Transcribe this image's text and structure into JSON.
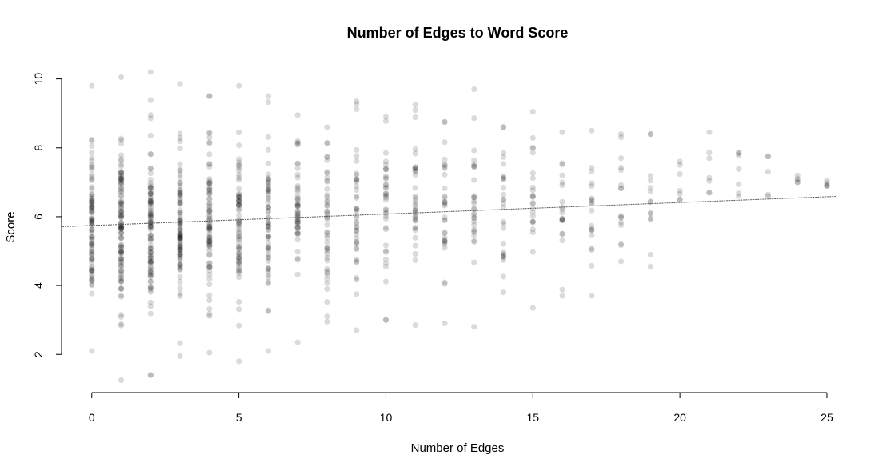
{
  "chart_data": {
    "type": "scatter",
    "title": "Number of Edges to Word Score",
    "xlabel": "Number of Edges",
    "ylabel": "Score",
    "xlim": [
      -1,
      25.3
    ],
    "ylim": [
      1.1,
      10.2
    ],
    "x_ticks": [
      0,
      5,
      10,
      15,
      20,
      25
    ],
    "y_ticks": [
      2,
      4,
      6,
      8,
      10
    ],
    "grid": false,
    "legend": "none",
    "point_color": "#000000",
    "point_opacity": 0.14,
    "trend_line": {
      "x0": -1,
      "y0": 5.71,
      "x1": 25.3,
      "y1": 6.59
    },
    "columns": [
      {
        "x": 0,
        "min": 2.1,
        "max": 9.8,
        "count": 90,
        "center": 5.6,
        "spread": 1.2
      },
      {
        "x": 1,
        "min": 1.25,
        "max": 10.05,
        "count": 110,
        "center": 5.7,
        "spread": 1.3
      },
      {
        "x": 2,
        "min": 1.4,
        "max": 10.2,
        "count": 100,
        "center": 5.6,
        "spread": 1.3
      },
      {
        "x": 3,
        "min": 1.95,
        "max": 9.85,
        "count": 90,
        "center": 5.8,
        "spread": 1.2
      },
      {
        "x": 4,
        "min": 2.05,
        "max": 9.5,
        "count": 80,
        "center": 5.8,
        "spread": 1.2
      },
      {
        "x": 5,
        "min": 1.8,
        "max": 9.8,
        "count": 70,
        "center": 5.8,
        "spread": 1.2
      },
      {
        "x": 6,
        "min": 2.1,
        "max": 9.5,
        "count": 60,
        "center": 5.8,
        "spread": 1.2
      },
      {
        "x": 7,
        "min": 2.35,
        "max": 8.95,
        "count": 50,
        "center": 5.9,
        "spread": 1.1
      },
      {
        "x": 8,
        "min": 2.95,
        "max": 8.6,
        "count": 45,
        "center": 6.0,
        "spread": 1.1
      },
      {
        "x": 9,
        "min": 2.7,
        "max": 9.35,
        "count": 40,
        "center": 6.0,
        "spread": 1.1
      },
      {
        "x": 10,
        "min": 3.0,
        "max": 8.9,
        "count": 36,
        "center": 6.0,
        "spread": 1.1
      },
      {
        "x": 11,
        "min": 2.85,
        "max": 9.25,
        "count": 33,
        "center": 6.1,
        "spread": 1.1
      },
      {
        "x": 12,
        "min": 2.9,
        "max": 8.75,
        "count": 30,
        "center": 6.1,
        "spread": 1.1
      },
      {
        "x": 13,
        "min": 2.8,
        "max": 9.7,
        "count": 28,
        "center": 6.1,
        "spread": 1.1
      },
      {
        "x": 14,
        "min": 3.8,
        "max": 8.6,
        "count": 25,
        "center": 6.2,
        "spread": 1.0
      },
      {
        "x": 15,
        "min": 3.35,
        "max": 9.05,
        "count": 22,
        "center": 6.2,
        "spread": 1.1
      },
      {
        "x": 16,
        "min": 3.7,
        "max": 8.45,
        "count": 18,
        "center": 6.3,
        "spread": 1.0
      },
      {
        "x": 17,
        "min": 3.7,
        "max": 8.5,
        "count": 18,
        "center": 6.3,
        "spread": 1.0
      },
      {
        "x": 18,
        "min": 4.7,
        "max": 8.4,
        "count": 14,
        "center": 6.5,
        "spread": 0.9
      },
      {
        "x": 19,
        "min": 4.55,
        "max": 8.4,
        "count": 12,
        "center": 6.6,
        "spread": 0.9
      },
      {
        "x": 20,
        "min": 6.5,
        "max": 7.6,
        "count": 5,
        "center": 7.0,
        "spread": 0.4
      },
      {
        "x": 21,
        "min": 6.7,
        "max": 8.45,
        "count": 5,
        "center": 7.2,
        "spread": 0.5
      },
      {
        "x": 22,
        "min": 6.6,
        "max": 7.85,
        "count": 5,
        "center": 7.1,
        "spread": 0.4
      },
      {
        "x": 23,
        "min": 6.6,
        "max": 7.75,
        "count": 3,
        "center": 7.1,
        "spread": 0.4
      },
      {
        "x": 24,
        "min": 7.0,
        "max": 7.2,
        "count": 3,
        "center": 7.1,
        "spread": 0.1
      },
      {
        "x": 25,
        "min": 6.9,
        "max": 7.05,
        "count": 3,
        "center": 7.0,
        "spread": 0.1
      }
    ]
  }
}
